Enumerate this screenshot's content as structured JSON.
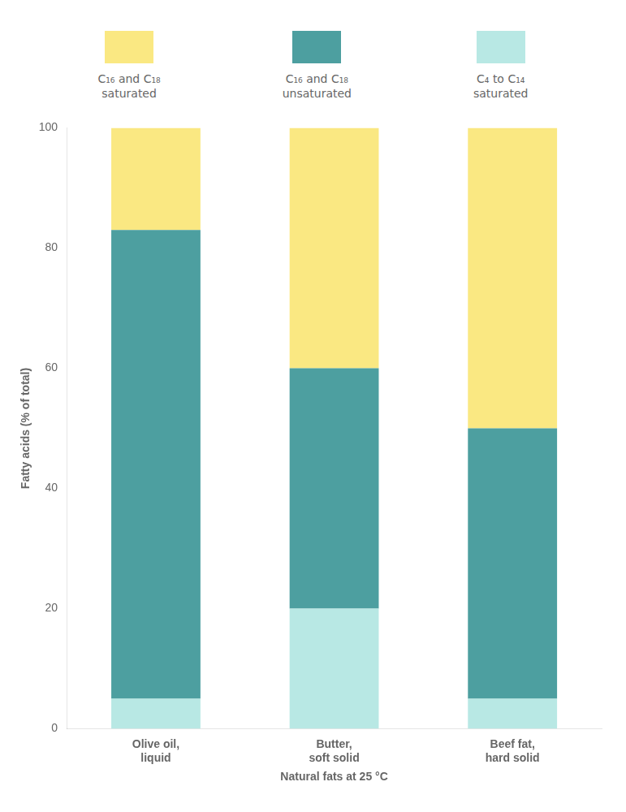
{
  "chart_data": {
    "type": "bar",
    "stacked": true,
    "xlabel": "Natural fats at 25 °C",
    "ylabel": "Fatty acids (% of total)",
    "categories": [
      "Olive oil,\nliquid",
      "Butter,\nsoft solid",
      "Beef fat,\nhard solid"
    ],
    "series": [
      {
        "name": "C₄ to C₁₄\nsaturated",
        "color": "#B8E8E4",
        "values": [
          5,
          20,
          5
        ]
      },
      {
        "name": "C₁₆ and C₁₈\nunsaturated",
        "color": "#4D9FA0",
        "values": [
          78,
          40,
          45
        ]
      },
      {
        "name": "C₁₆ and C₁₈\nsaturated",
        "color": "#FAE882",
        "values": [
          17,
          40,
          50
        ]
      }
    ],
    "ylim": [
      0,
      100
    ],
    "yticks": [
      0,
      20,
      40,
      60,
      80,
      100
    ],
    "grid": false,
    "legend": "top"
  }
}
